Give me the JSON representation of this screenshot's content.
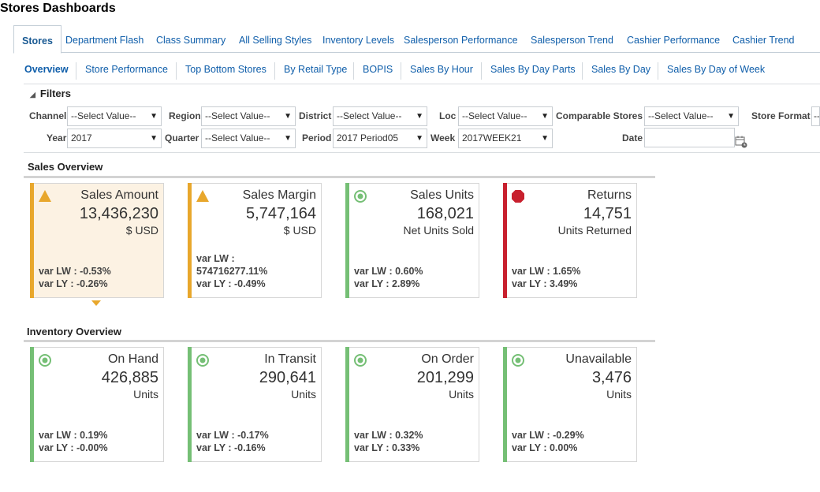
{
  "page_title": "Stores Dashboards",
  "main_tabs": [
    "Stores",
    "Department Flash",
    "Class Summary",
    "All Selling Styles",
    "Inventory Levels",
    "Salesperson Performance",
    "Salesperson Trend",
    "Cashier Performance",
    "Cashier Trend"
  ],
  "sub_tabs": [
    "Overview",
    "Store Performance",
    "Top Bottom Stores",
    "By Retail Type",
    "BOPIS",
    "Sales By Hour",
    "Sales By Day Parts",
    "Sales By Day",
    "Sales By Day of Week"
  ],
  "filters": {
    "header": "Filters",
    "channel": {
      "label": "Channel",
      "value": "--Select Value--"
    },
    "region": {
      "label": "Region",
      "value": "--Select Value--"
    },
    "district": {
      "label": "District",
      "value": "--Select Value--"
    },
    "loc": {
      "label": "Loc",
      "value": "--Select Value--"
    },
    "comparable_stores": {
      "label": "Comparable Stores",
      "value": "--Select Value--"
    },
    "store_format": {
      "label": "Store Format",
      "value": "--"
    },
    "year": {
      "label": "Year",
      "value": "2017"
    },
    "quarter": {
      "label": "Quarter",
      "value": "--Select Value--"
    },
    "period": {
      "label": "Period",
      "value": "2017 Period05"
    },
    "week": {
      "label": "Week",
      "value": "2017WEEK21"
    },
    "date": {
      "label": "Date",
      "value": ""
    }
  },
  "colors": {
    "warning": "#e8a72c",
    "ok": "#75bf75",
    "critical": "#c8202e",
    "link": "#0f5eaa"
  },
  "sales_overview": {
    "title": "Sales Overview",
    "cards": [
      {
        "icon": "warning-triangle-icon",
        "status": "warning",
        "title": "Sales Amount",
        "value": "13,436,230",
        "unit": "$ USD",
        "var_lw": "var LW : -0.53%",
        "var_ly": "var LY : -0.26%"
      },
      {
        "icon": "warning-triangle-icon",
        "status": "warning",
        "title": "Sales Margin",
        "value": "5,747,164",
        "unit": "$ USD",
        "var_lw": "var LW :",
        "var_lw2": "574716277.11%",
        "var_ly": "var LY : -0.49%"
      },
      {
        "icon": "ok-circle-icon",
        "status": "ok",
        "title": "Sales Units",
        "value": "168,021",
        "unit": "Net Units Sold",
        "var_lw": "var LW : 0.60%",
        "var_ly": "var LY : 2.89%"
      },
      {
        "icon": "stop-octagon-icon",
        "status": "critical",
        "title": "Returns",
        "value": "14,751",
        "unit": "Units Returned",
        "var_lw": "var LW : 1.65%",
        "var_ly": "var LY : 3.49%"
      }
    ]
  },
  "inventory_overview": {
    "title": "Inventory Overview",
    "cards": [
      {
        "icon": "ok-circle-icon",
        "status": "ok",
        "title": "On Hand",
        "value": "426,885",
        "unit": "Units",
        "var_lw": "var LW : 0.19%",
        "var_ly": "var LY : -0.00%"
      },
      {
        "icon": "ok-circle-icon",
        "status": "ok",
        "title": "In Transit",
        "value": "290,641",
        "unit": "Units",
        "var_lw": "var LW : -0.17%",
        "var_ly": "var LY : -0.16%"
      },
      {
        "icon": "ok-circle-icon",
        "status": "ok",
        "title": "On Order",
        "value": "201,299",
        "unit": "Units",
        "var_lw": "var LW : 0.32%",
        "var_ly": "var LY : 0.33%"
      },
      {
        "icon": "ok-circle-icon",
        "status": "ok",
        "title": "Unavailable",
        "value": "3,476",
        "unit": "Units",
        "var_lw": "var LW : -0.29%",
        "var_ly": "var LY : 0.00%"
      }
    ]
  }
}
